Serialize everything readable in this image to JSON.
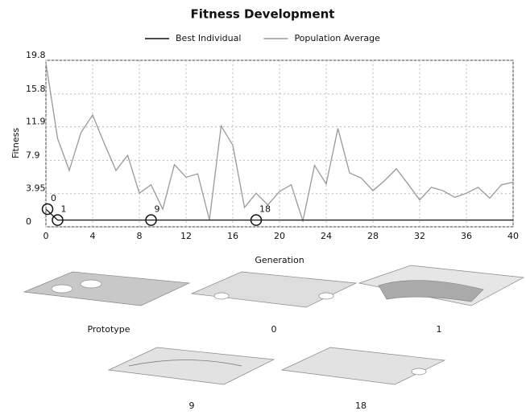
{
  "chart_data": {
    "type": "line",
    "title": "Fitness Development",
    "xlabel": "Generation",
    "ylabel": "Fitness",
    "x": [
      0,
      1,
      2,
      3,
      4,
      5,
      6,
      7,
      8,
      9,
      10,
      11,
      12,
      13,
      14,
      15,
      16,
      17,
      18,
      19,
      20,
      21,
      22,
      23,
      24,
      25,
      26,
      27,
      28,
      29,
      30,
      31,
      32,
      33,
      34,
      35,
      36,
      37,
      38,
      39,
      40
    ],
    "series": [
      {
        "name": "Best Individual",
        "color": "#111111",
        "values": [
          2.1,
          0.8,
          0.8,
          0.8,
          0.8,
          0.8,
          0.8,
          0.8,
          0.8,
          0.8,
          0.8,
          0.8,
          0.8,
          0.8,
          0.8,
          0.8,
          0.8,
          0.8,
          0.8,
          0.8,
          0.8,
          0.8,
          0.8,
          0.8,
          0.8,
          0.8,
          0.8,
          0.8,
          0.8,
          0.8,
          0.8,
          0.8,
          0.8,
          0.8,
          0.8,
          0.8,
          0.8,
          0.8,
          0.8,
          0.8,
          0.8
        ]
      },
      {
        "name": "Population Average",
        "color": "#999999",
        "values": [
          19.5,
          10.5,
          6.7,
          11.2,
          13.3,
          9.9,
          6.7,
          8.5,
          4.0,
          5.0,
          2.1,
          7.4,
          5.9,
          6.3,
          0.8,
          12.0,
          9.7,
          2.3,
          4.0,
          2.6,
          4.2,
          5.0,
          0.7,
          7.3,
          5.1,
          11.7,
          6.4,
          5.8,
          4.3,
          5.5,
          6.9,
          5.1,
          3.2,
          4.7,
          4.3,
          3.5,
          4.0,
          4.7,
          3.4,
          5.0,
          5.3
        ]
      }
    ],
    "marked_generations": [
      0,
      1,
      9,
      18
    ],
    "xlim": [
      0,
      40
    ],
    "xticks": [
      0,
      4,
      8,
      12,
      16,
      20,
      24,
      28,
      32,
      36,
      40
    ],
    "ylim": [
      0,
      19.8
    ],
    "yticks": [
      0,
      3.95,
      7.9,
      11.9,
      15.8,
      19.8
    ],
    "grid": true,
    "legend": "top"
  },
  "renderings": [
    "Prototype",
    "0",
    "1",
    "9",
    "18"
  ]
}
